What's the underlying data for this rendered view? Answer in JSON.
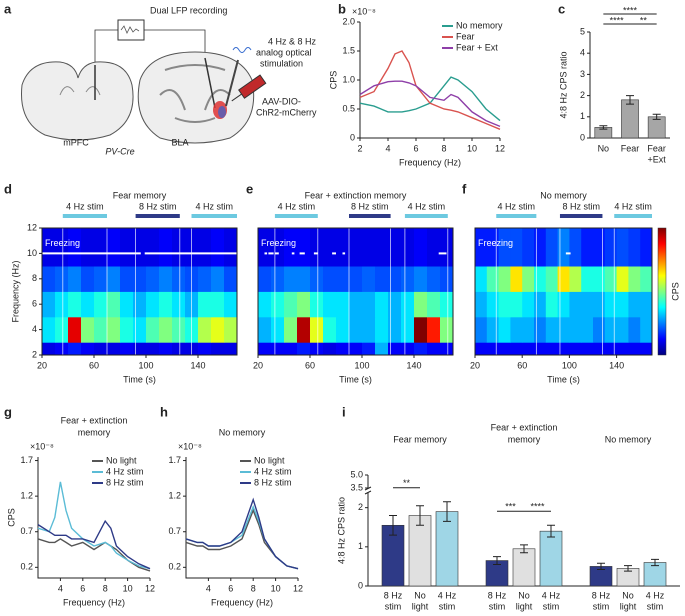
{
  "diagram": {
    "panel": "a",
    "recording": "Dual LFP recording",
    "stimulation": [
      "4 Hz & 8 Hz",
      "analog optical",
      "stimulation"
    ],
    "virus": [
      "AAV-DIO-",
      "ChR2-mCherry"
    ],
    "region_left": "mPFC",
    "region_right": "BLA",
    "mouse_line": "PV-Cre"
  },
  "chart_data": [
    {
      "type": "line",
      "panel": "b",
      "xlabel": "Frequency (Hz)",
      "ylabel": "CPS",
      "yscale_label": "×10⁻⁸",
      "x": [
        2,
        3,
        4,
        4.5,
        5,
        5.5,
        6,
        7,
        8,
        8.5,
        9,
        10,
        11,
        12
      ],
      "xlim": [
        2,
        12
      ],
      "xticks": [
        2,
        4,
        6,
        8,
        10,
        12
      ],
      "ylim": [
        0,
        2
      ],
      "yticks": [
        0,
        0.5,
        {
          "value": 1,
          "label": "1.0"
        },
        1.5,
        {
          "value": 2,
          "label": "2.0"
        }
      ],
      "legend": "upper right",
      "series": [
        {
          "name": "No memory",
          "color": "#2a9d8f",
          "values": [
            0.6,
            0.55,
            0.45,
            0.45,
            0.45,
            0.47,
            0.5,
            0.6,
            0.9,
            1.05,
            1.0,
            0.8,
            0.5,
            0.3
          ]
        },
        {
          "name": "Fear",
          "color": "#d9534f",
          "values": [
            0.7,
            0.8,
            1.2,
            1.45,
            1.5,
            1.3,
            0.9,
            0.6,
            0.5,
            0.48,
            0.45,
            0.35,
            0.25,
            0.15
          ]
        },
        {
          "name": "Fear + Ext",
          "color": "#8e3fa8",
          "values": [
            0.75,
            0.9,
            0.97,
            0.98,
            0.98,
            0.95,
            0.9,
            0.7,
            0.65,
            0.75,
            0.7,
            0.45,
            0.3,
            0.2
          ]
        }
      ]
    },
    {
      "type": "bar",
      "panel": "c",
      "ylabel": "4:8 Hz CPS ratio",
      "color": "#a6a6a6",
      "categories": [
        [
          "No"
        ],
        [
          "Fear"
        ],
        [
          "Fear",
          "+Ext"
        ]
      ],
      "values": [
        0.5,
        1.8,
        1.0
      ],
      "errors": [
        0.08,
        0.2,
        0.12
      ],
      "ylim": [
        0,
        5
      ],
      "yticks": [
        0,
        1,
        2,
        3,
        4,
        5
      ],
      "annotations": [
        {
          "text": "****",
          "from": 0,
          "to": 2
        },
        {
          "text": "****",
          "from": 0,
          "to": 1
        },
        {
          "text": "**",
          "from": 1,
          "to": 2
        }
      ]
    },
    {
      "type": "heatmap",
      "panel": "d",
      "title": "Fear memory",
      "xlabel": "Time (s)",
      "ylabel": "Frequency (Hz)",
      "xlim": [
        20,
        170
      ],
      "xticks": [
        20,
        60,
        100,
        140
      ],
      "ylim": [
        2,
        12
      ],
      "yticks": [
        2,
        4,
        6,
        8,
        10,
        12
      ],
      "zlim": [
        0,
        1
      ],
      "x_edges": [
        20,
        30,
        40,
        50,
        60,
        70,
        80,
        90,
        100,
        110,
        120,
        130,
        140,
        150,
        160,
        170
      ],
      "y_edges": [
        2,
        3,
        5,
        7,
        9,
        12
      ],
      "z": [
        [
          0.1,
          0.12,
          0.15,
          0.12,
          0.1,
          0.1,
          0.12,
          0.1,
          0.1,
          0.12,
          0.1,
          0.1,
          0.12,
          0.1,
          0.1
        ],
        [
          0.35,
          0.4,
          0.9,
          0.5,
          0.45,
          0.5,
          0.4,
          0.35,
          0.45,
          0.5,
          0.45,
          0.4,
          0.55,
          0.6,
          0.55
        ],
        [
          0.3,
          0.35,
          0.4,
          0.35,
          0.4,
          0.45,
          0.35,
          0.3,
          0.35,
          0.4,
          0.35,
          0.3,
          0.4,
          0.4,
          0.35
        ],
        [
          0.2,
          0.22,
          0.25,
          0.2,
          0.22,
          0.25,
          0.2,
          0.2,
          0.22,
          0.25,
          0.22,
          0.2,
          0.22,
          0.25,
          0.2
        ],
        [
          0.1,
          0.1,
          0.12,
          0.1,
          0.1,
          0.12,
          0.1,
          0.1,
          0.1,
          0.12,
          0.1,
          0.1,
          0.1,
          0.12,
          0.1
        ]
      ],
      "stim": [
        {
          "label": "4 Hz stim",
          "start": 36,
          "end": 70,
          "color": "#6cc9e0"
        },
        {
          "label": "8 Hz stim",
          "start": 92,
          "end": 126,
          "color": "#2e3a87"
        },
        {
          "label": "4 Hz stim",
          "start": 135,
          "end": 170,
          "color": "#6cc9e0"
        }
      ],
      "freezing_label": "Freezing",
      "freezing": [
        [
          20,
          96
        ],
        [
          99,
          170
        ]
      ]
    },
    {
      "type": "heatmap",
      "panel": "e",
      "title": "Fear + extinction memory",
      "xlabel": "Time (s)",
      "xlim": [
        20,
        170
      ],
      "xticks": [
        20,
        60,
        100,
        140
      ],
      "ylim": [
        2,
        12
      ],
      "zlim": [
        0,
        1
      ],
      "x_edges": [
        20,
        30,
        40,
        50,
        60,
        70,
        80,
        90,
        100,
        110,
        120,
        130,
        140,
        150,
        160,
        170
      ],
      "y_edges": [
        2,
        3,
        5,
        7,
        9,
        12
      ],
      "z": [
        [
          0.12,
          0.12,
          0.12,
          0.15,
          0.12,
          0.1,
          0.12,
          0.12,
          0.15,
          0.3,
          0.12,
          0.12,
          0.15,
          0.12,
          0.12
        ],
        [
          0.3,
          0.35,
          0.5,
          0.95,
          0.6,
          0.4,
          0.35,
          0.3,
          0.3,
          0.35,
          0.3,
          0.35,
          1.0,
          0.85,
          0.5
        ],
        [
          0.35,
          0.4,
          0.45,
          0.5,
          0.4,
          0.35,
          0.35,
          0.3,
          0.3,
          0.35,
          0.3,
          0.35,
          0.5,
          0.45,
          0.4
        ],
        [
          0.2,
          0.22,
          0.25,
          0.25,
          0.22,
          0.2,
          0.2,
          0.2,
          0.22,
          0.2,
          0.2,
          0.22,
          0.25,
          0.22,
          0.2
        ],
        [
          0.1,
          0.1,
          0.12,
          0.12,
          0.1,
          0.1,
          0.1,
          0.1,
          0.1,
          0.1,
          0.1,
          0.1,
          0.12,
          0.1,
          0.1
        ]
      ],
      "stim": [
        {
          "label": "4 Hz stim",
          "start": 33,
          "end": 66,
          "color": "#6cc9e0"
        },
        {
          "label": "8 Hz stim",
          "start": 90,
          "end": 122,
          "color": "#2e3a87"
        },
        {
          "label": "4 Hz stim",
          "start": 133,
          "end": 166,
          "color": "#6cc9e0"
        }
      ],
      "freezing_label": "Freezing",
      "freezing": [
        [
          25,
          27
        ],
        [
          28,
          32
        ],
        [
          33,
          36
        ],
        [
          46,
          48
        ],
        [
          52,
          56
        ],
        [
          63,
          66
        ],
        [
          77,
          80
        ],
        [
          85,
          87
        ],
        [
          159,
          165
        ]
      ]
    },
    {
      "type": "heatmap",
      "panel": "f",
      "title": "No memory",
      "xlabel": "Time (s)",
      "colorbar_label": "CPS",
      "xlim": [
        20,
        170
      ],
      "xticks": [
        20,
        60,
        100,
        140
      ],
      "ylim": [
        2,
        12
      ],
      "zlim": [
        0,
        1
      ],
      "x_edges": [
        20,
        30,
        40,
        50,
        60,
        70,
        80,
        90,
        100,
        110,
        120,
        130,
        140,
        150,
        160,
        170
      ],
      "y_edges": [
        2,
        3,
        5,
        7,
        9,
        12
      ],
      "z": [
        [
          0.12,
          0.12,
          0.12,
          0.12,
          0.12,
          0.12,
          0.12,
          0.12,
          0.12,
          0.12,
          0.12,
          0.12,
          0.12,
          0.12,
          0.12
        ],
        [
          0.25,
          0.3,
          0.35,
          0.3,
          0.3,
          0.25,
          0.3,
          0.3,
          0.3,
          0.3,
          0.25,
          0.3,
          0.3,
          0.25,
          0.3
        ],
        [
          0.3,
          0.35,
          0.4,
          0.4,
          0.35,
          0.3,
          0.4,
          0.35,
          0.3,
          0.3,
          0.3,
          0.35,
          0.35,
          0.3,
          0.3
        ],
        [
          0.35,
          0.45,
          0.5,
          0.65,
          0.5,
          0.4,
          0.45,
          0.65,
          0.55,
          0.4,
          0.4,
          0.45,
          0.6,
          0.5,
          0.45
        ],
        [
          0.15,
          0.15,
          0.2,
          0.2,
          0.18,
          0.15,
          0.2,
          0.25,
          0.2,
          0.15,
          0.15,
          0.18,
          0.2,
          0.18,
          0.15
        ]
      ],
      "stim": [
        {
          "label": "4 Hz stim",
          "start": 38,
          "end": 72,
          "color": "#6cc9e0"
        },
        {
          "label": "8 Hz stim",
          "start": 92,
          "end": 128,
          "color": "#2e3a87"
        },
        {
          "label": "4 Hz stim",
          "start": 138,
          "end": 170,
          "color": "#6cc9e0"
        }
      ],
      "freezing_label": "Freezing",
      "freezing": [
        [
          97,
          101
        ]
      ]
    },
    {
      "type": "line",
      "panel": "g",
      "title": [
        "Fear + extinction",
        "memory"
      ],
      "xlabel": "Frequency (Hz)",
      "ylabel": "CPS",
      "yscale_label": "×10⁻⁸",
      "x": [
        2,
        3,
        3.5,
        4,
        4.5,
        5,
        6,
        7,
        8,
        8.5,
        9,
        10,
        11,
        12
      ],
      "xlim": [
        2,
        12
      ],
      "xticks": [
        4,
        6,
        8,
        10,
        12
      ],
      "ylim": [
        0.05,
        1.75
      ],
      "yticks": [
        0.2,
        0.7,
        1.2,
        1.7
      ],
      "legend": "upper right",
      "series": [
        {
          "name": "No light",
          "color": "#555555",
          "values": [
            0.6,
            0.55,
            0.55,
            0.6,
            0.55,
            0.5,
            0.55,
            0.45,
            0.55,
            0.5,
            0.45,
            0.3,
            0.2,
            0.15
          ]
        },
        {
          "name": "4 Hz stim",
          "color": "#5bbcd6",
          "values": [
            0.75,
            0.7,
            0.9,
            1.4,
            1.0,
            0.75,
            0.6,
            0.5,
            0.55,
            0.5,
            0.4,
            0.3,
            0.22,
            0.18
          ]
        },
        {
          "name": "8 Hz stim",
          "color": "#2e3a87",
          "values": [
            0.8,
            0.7,
            0.65,
            0.65,
            0.65,
            0.6,
            0.6,
            0.55,
            0.85,
            0.75,
            0.5,
            0.35,
            0.25,
            0.18
          ]
        }
      ]
    },
    {
      "type": "line",
      "panel": "h",
      "title": [
        "No memory"
      ],
      "xlabel": "Frequency (Hz)",
      "yscale_label": "×10⁻⁸",
      "x": [
        2,
        3,
        3.5,
        4,
        4.5,
        5,
        6,
        7,
        8,
        8.5,
        9,
        10,
        11,
        12
      ],
      "xlim": [
        2,
        12
      ],
      "xticks": [
        4,
        6,
        8,
        10,
        12
      ],
      "ylim": [
        0.05,
        1.75
      ],
      "yticks": [
        0.2,
        0.7,
        1.2,
        1.7
      ],
      "legend": "upper right",
      "series": [
        {
          "name": "No light",
          "color": "#555555",
          "values": [
            0.55,
            0.5,
            0.5,
            0.45,
            0.45,
            0.45,
            0.5,
            0.6,
            1.0,
            0.8,
            0.55,
            0.35,
            0.22,
            0.18
          ]
        },
        {
          "name": "4 Hz stim",
          "color": "#5bbcd6",
          "values": [
            0.6,
            0.55,
            0.55,
            0.5,
            0.5,
            0.5,
            0.55,
            0.65,
            1.05,
            0.85,
            0.6,
            0.35,
            0.22,
            0.18
          ]
        },
        {
          "name": "8 Hz stim",
          "color": "#2e3a87",
          "values": [
            0.6,
            0.55,
            0.55,
            0.5,
            0.5,
            0.5,
            0.55,
            0.7,
            1.15,
            0.9,
            0.6,
            0.35,
            0.22,
            0.18
          ]
        }
      ]
    },
    {
      "type": "groupbar",
      "panel": "i",
      "ylabel": "4:8 Hz CPS ratio",
      "ylim": [
        0,
        5
      ],
      "ybreak": [
        2.4,
        3.5
      ],
      "yticks": [
        0,
        1,
        2,
        3.5,
        {
          "value": 5,
          "label": "5.0"
        }
      ],
      "categories": [
        [
          "8 Hz",
          "stim"
        ],
        [
          "No",
          "light"
        ],
        [
          "4 Hz",
          "stim"
        ]
      ],
      "colors": [
        "#2e3a87",
        "#e0e0e0",
        "#9fd6e6"
      ],
      "groups": [
        {
          "title": [
            "Fear memory"
          ],
          "values": [
            1.55,
            1.8,
            1.9
          ],
          "errors": [
            0.25,
            0.25,
            0.25
          ],
          "annotations": [
            {
              "text": "**",
              "from": 0,
              "to": 1
            }
          ]
        },
        {
          "title": [
            "Fear + extinction",
            "memory"
          ],
          "values": [
            0.65,
            0.95,
            1.4
          ],
          "errors": [
            0.1,
            0.1,
            0.15
          ],
          "annotations": [
            {
              "text": "***",
              "from": 0,
              "to": 1
            },
            {
              "text": "****",
              "from": 1,
              "to": 2
            }
          ]
        },
        {
          "title": [
            "No memory"
          ],
          "values": [
            0.5,
            0.45,
            0.6
          ],
          "errors": [
            0.08,
            0.07,
            0.08
          ],
          "annotations": []
        }
      ]
    }
  ]
}
